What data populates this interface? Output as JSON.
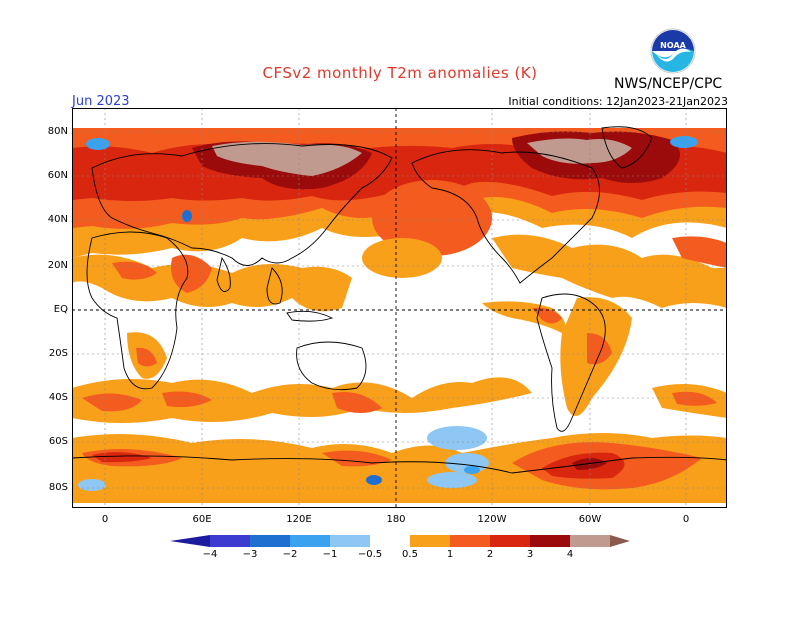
{
  "header": {
    "title": "CFSv2 monthly T2m anomalies (K)",
    "month": "Jun 2023",
    "initial_conditions": "Initial conditions: 12Jan2023-21Jan2023",
    "agency": "NWS/NCEP/CPC",
    "logo_text": "NOAA"
  },
  "map": {
    "lat_labels": [
      "80N",
      "60N",
      "40N",
      "20N",
      "EQ",
      "20S",
      "40S",
      "60S",
      "80S"
    ],
    "lon_labels": [
      "0",
      "60E",
      "120E",
      "180",
      "120W",
      "60W",
      "0"
    ]
  },
  "colorbar": {
    "levels": [
      "−4",
      "−3",
      "−2",
      "−1",
      "−0.5",
      "0.5",
      "1",
      "2",
      "3",
      "4"
    ],
    "colors": {
      "lt_-4": "#1c1a9e",
      "-4_-3": "#3c3cd0",
      "-3_-2": "#1f6fd1",
      "-2_-1": "#3aa2ee",
      "-1_-0.5": "#8ec7f3",
      "-0.5_0.5": "#ffffff",
      "0.5_1": "#f9a01b",
      "1_2": "#f45b1f",
      "2_3": "#d8260f",
      "3_4": "#9b0b0b",
      "4_5": "#c19a8f",
      "gt_5": "#8b5a4a"
    }
  }
}
